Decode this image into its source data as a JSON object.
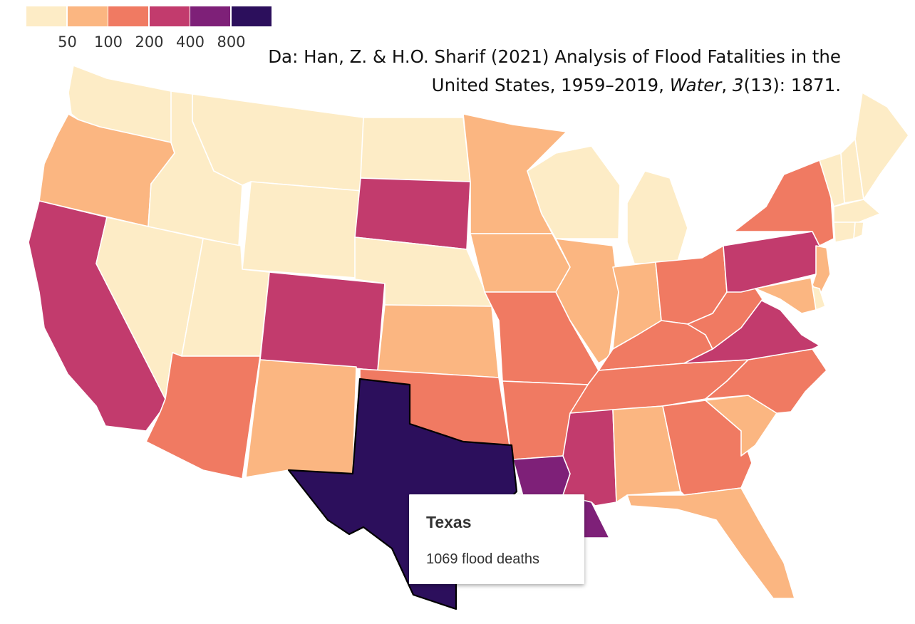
{
  "legend": {
    "colors": [
      "#fdecc6",
      "#fbb681",
      "#f07a62",
      "#c23b6d",
      "#7e2078",
      "#2c0f5c"
    ],
    "ticks": [
      "50",
      "100",
      "200",
      "400",
      "800"
    ]
  },
  "citation": {
    "prefix": "Da: Han, Z. & H.O. Sharif (2021) Analysis of Flood Fatalities in the United States, 1959–2019, ",
    "journal": "Water",
    "comma": ", ",
    "volume": "3",
    "issue_pages": "(13): 1871."
  },
  "tooltip": {
    "state": "Texas",
    "value_text": "1069 flood deaths"
  },
  "map_data": {
    "classes": [
      "<50",
      "50-100",
      "100-200",
      "200-400",
      "400-800",
      ">800"
    ],
    "states": [
      {
        "id": "WA",
        "class": 0
      },
      {
        "id": "OR",
        "class": 1
      },
      {
        "id": "CA",
        "class": 3
      },
      {
        "id": "NV",
        "class": 0
      },
      {
        "id": "ID",
        "class": 0
      },
      {
        "id": "MT",
        "class": 0
      },
      {
        "id": "WY",
        "class": 0
      },
      {
        "id": "UT",
        "class": 0
      },
      {
        "id": "AZ",
        "class": 2
      },
      {
        "id": "CO",
        "class": 3
      },
      {
        "id": "NM",
        "class": 1
      },
      {
        "id": "ND",
        "class": 0
      },
      {
        "id": "SD",
        "class": 3
      },
      {
        "id": "NE",
        "class": 0
      },
      {
        "id": "KS",
        "class": 1
      },
      {
        "id": "OK",
        "class": 2
      },
      {
        "id": "TX",
        "class": 5
      },
      {
        "id": "MN",
        "class": 1
      },
      {
        "id": "IA",
        "class": 1
      },
      {
        "id": "MO",
        "class": 2
      },
      {
        "id": "AR",
        "class": 2
      },
      {
        "id": "LA",
        "class": 4
      },
      {
        "id": "WI",
        "class": 0
      },
      {
        "id": "MI",
        "class": 0
      },
      {
        "id": "IL",
        "class": 1
      },
      {
        "id": "IN",
        "class": 1
      },
      {
        "id": "OH",
        "class": 2
      },
      {
        "id": "KY",
        "class": 2
      },
      {
        "id": "TN",
        "class": 2
      },
      {
        "id": "MS",
        "class": 3
      },
      {
        "id": "AL",
        "class": 1
      },
      {
        "id": "GA",
        "class": 2
      },
      {
        "id": "FL",
        "class": 1
      },
      {
        "id": "SC",
        "class": 1
      },
      {
        "id": "NC",
        "class": 2
      },
      {
        "id": "VA",
        "class": 3
      },
      {
        "id": "WV",
        "class": 2
      },
      {
        "id": "PA",
        "class": 3
      },
      {
        "id": "NY",
        "class": 2
      },
      {
        "id": "NJ",
        "class": 1
      },
      {
        "id": "DE",
        "class": 0
      },
      {
        "id": "MD",
        "class": 1
      },
      {
        "id": "VT",
        "class": 0
      },
      {
        "id": "NH",
        "class": 0
      },
      {
        "id": "ME",
        "class": 0
      },
      {
        "id": "MA",
        "class": 0
      },
      {
        "id": "CT",
        "class": 0
      },
      {
        "id": "RI",
        "class": 0
      }
    ]
  }
}
